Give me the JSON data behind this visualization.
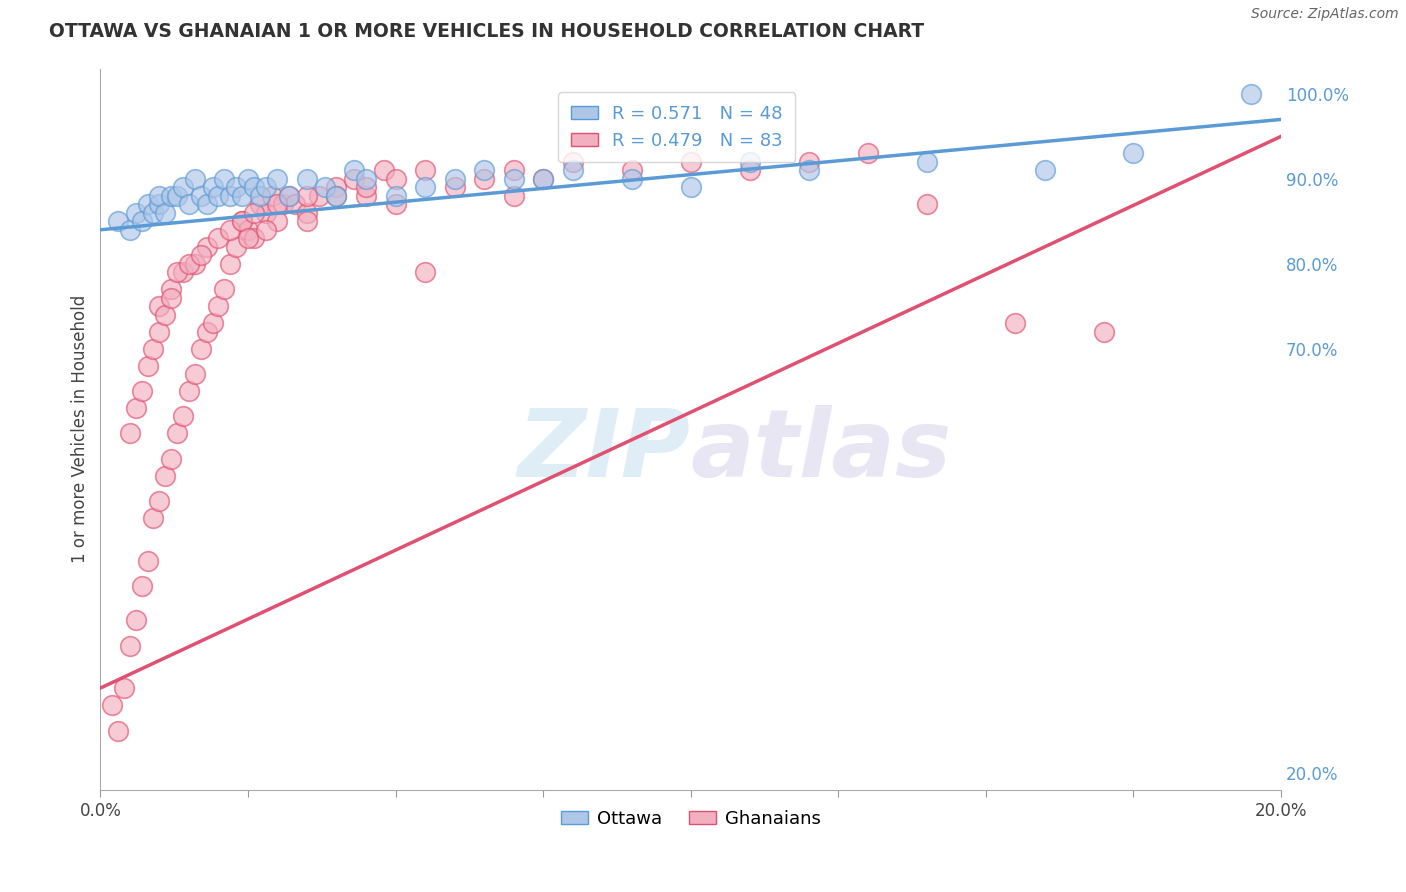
{
  "title": "OTTAWA VS GHANAIAN 1 OR MORE VEHICLES IN HOUSEHOLD CORRELATION CHART",
  "source": "Source: ZipAtlas.com",
  "ylabel": "1 or more Vehicles in Household",
  "xlim": [
    0.0,
    20.0
  ],
  "ylim": [
    18.0,
    103.0
  ],
  "x_ticks": [
    0.0,
    2.5,
    5.0,
    7.5,
    10.0,
    12.5,
    15.0,
    17.5,
    20.0
  ],
  "y_ticks_right": [
    20.0,
    70.0,
    80.0,
    90.0,
    100.0
  ],
  "y_tick_labels_right": [
    "20.0%",
    "70.0%",
    "80.0%",
    "90.0%",
    "100.0%"
  ],
  "ottawa_R": 0.571,
  "ottawa_N": 48,
  "ghanaian_R": 0.479,
  "ghanaian_N": 83,
  "ottawa_color": "#aec6e8",
  "ghanaian_color": "#f2afc0",
  "ottawa_line_color": "#5b9bd5",
  "ghanaian_line_color": "#e05070",
  "legend_label_ottawa": "Ottawa",
  "legend_label_ghanaian": "Ghanaians",
  "background_color": "#ffffff",
  "grid_color": "#c8c8c8",
  "watermark_zip": "ZIP",
  "watermark_atlas": "atlas",
  "ottawa_x": [
    0.3,
    0.5,
    0.6,
    0.7,
    0.8,
    0.9,
    1.0,
    1.0,
    1.1,
    1.2,
    1.3,
    1.4,
    1.5,
    1.6,
    1.7,
    1.8,
    1.9,
    2.0,
    2.1,
    2.2,
    2.3,
    2.4,
    2.5,
    2.6,
    2.7,
    2.8,
    3.0,
    3.2,
    3.5,
    3.8,
    4.0,
    4.3,
    4.5,
    5.0,
    5.5,
    6.0,
    6.5,
    7.0,
    7.5,
    8.0,
    9.0,
    10.0,
    11.0,
    12.0,
    14.0,
    16.0,
    17.5,
    19.5
  ],
  "ottawa_y": [
    85,
    84,
    86,
    85,
    87,
    86,
    87,
    88,
    86,
    88,
    88,
    89,
    87,
    90,
    88,
    87,
    89,
    88,
    90,
    88,
    89,
    88,
    90,
    89,
    88,
    89,
    90,
    88,
    90,
    89,
    88,
    91,
    90,
    88,
    89,
    90,
    91,
    90,
    90,
    91,
    90,
    89,
    92,
    91,
    92,
    91,
    93,
    100
  ],
  "ghanaian_x": [
    0.2,
    0.3,
    0.4,
    0.5,
    0.6,
    0.7,
    0.8,
    0.9,
    1.0,
    1.1,
    1.2,
    1.3,
    1.4,
    1.5,
    1.6,
    1.7,
    1.8,
    1.9,
    2.0,
    2.1,
    2.2,
    2.3,
    2.4,
    2.5,
    2.6,
    2.7,
    2.8,
    2.9,
    3.0,
    3.1,
    3.2,
    3.3,
    3.5,
    3.7,
    4.0,
    4.3,
    4.5,
    4.8,
    5.0,
    5.5,
    6.0,
    6.5,
    7.0,
    7.5,
    8.0,
    9.0,
    10.0,
    11.0,
    12.0,
    13.0,
    14.0,
    15.5,
    1.0,
    1.2,
    1.4,
    1.6,
    1.8,
    2.0,
    2.2,
    2.4,
    2.6,
    2.8,
    3.0,
    3.5,
    4.0,
    4.5,
    5.0,
    0.5,
    0.6,
    0.7,
    0.8,
    0.9,
    1.0,
    1.1,
    1.2,
    1.3,
    1.5,
    1.7,
    2.5,
    3.5,
    5.5,
    7.0,
    17.0
  ],
  "ghanaian_y": [
    28,
    25,
    30,
    35,
    38,
    42,
    45,
    50,
    52,
    55,
    57,
    60,
    62,
    65,
    67,
    70,
    72,
    73,
    75,
    77,
    80,
    82,
    85,
    84,
    83,
    87,
    86,
    88,
    85,
    87,
    88,
    87,
    86,
    88,
    89,
    90,
    88,
    91,
    90,
    91,
    89,
    90,
    91,
    90,
    92,
    91,
    92,
    91,
    92,
    93,
    87,
    73,
    75,
    77,
    79,
    80,
    82,
    83,
    84,
    85,
    86,
    84,
    87,
    88,
    88,
    89,
    87,
    60,
    63,
    65,
    68,
    70,
    72,
    74,
    76,
    79,
    80,
    81,
    83,
    85,
    79,
    88,
    72
  ]
}
